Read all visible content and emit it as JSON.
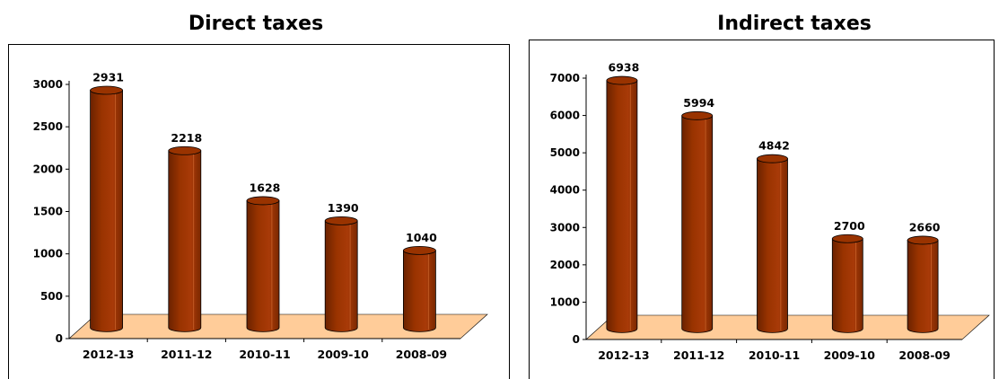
{
  "charts": [
    {
      "title": "Direct taxes",
      "chart_data": {
        "type": "bar",
        "title": "Direct taxes",
        "categories": [
          "2012-13",
          "2011-12",
          "2010-11",
          "2009-10",
          "2008-09"
        ],
        "values": [
          2931,
          2218,
          1628,
          1390,
          1040
        ],
        "value_labels": [
          "2931",
          "2218",
          "1628",
          "1390",
          "1040"
        ],
        "xlabel": "",
        "ylabel": "",
        "ylim": [
          0,
          3000
        ],
        "yticks": [
          0,
          500,
          1000,
          1500,
          2000,
          2500,
          3000
        ],
        "grid": false,
        "legend": "none",
        "bar_color": "#993300",
        "floor_color": "#FFCC99"
      }
    },
    {
      "title": "Indirect taxes",
      "chart_data": {
        "type": "bar",
        "title": "Indirect taxes",
        "categories": [
          "2012-13",
          "2011-12",
          "2010-11",
          "2009-10",
          "2008-09"
        ],
        "values": [
          6938,
          5994,
          4842,
          2700,
          2660
        ],
        "value_labels": [
          "6938",
          "5994",
          "4842",
          "2700",
          "2660"
        ],
        "xlabel": "",
        "ylabel": "",
        "ylim": [
          0,
          7000
        ],
        "yticks": [
          0,
          1000,
          2000,
          3000,
          4000,
          5000,
          6000,
          7000
        ],
        "grid": false,
        "legend": "none",
        "bar_color": "#993300",
        "floor_color": "#FFCC99"
      }
    }
  ]
}
